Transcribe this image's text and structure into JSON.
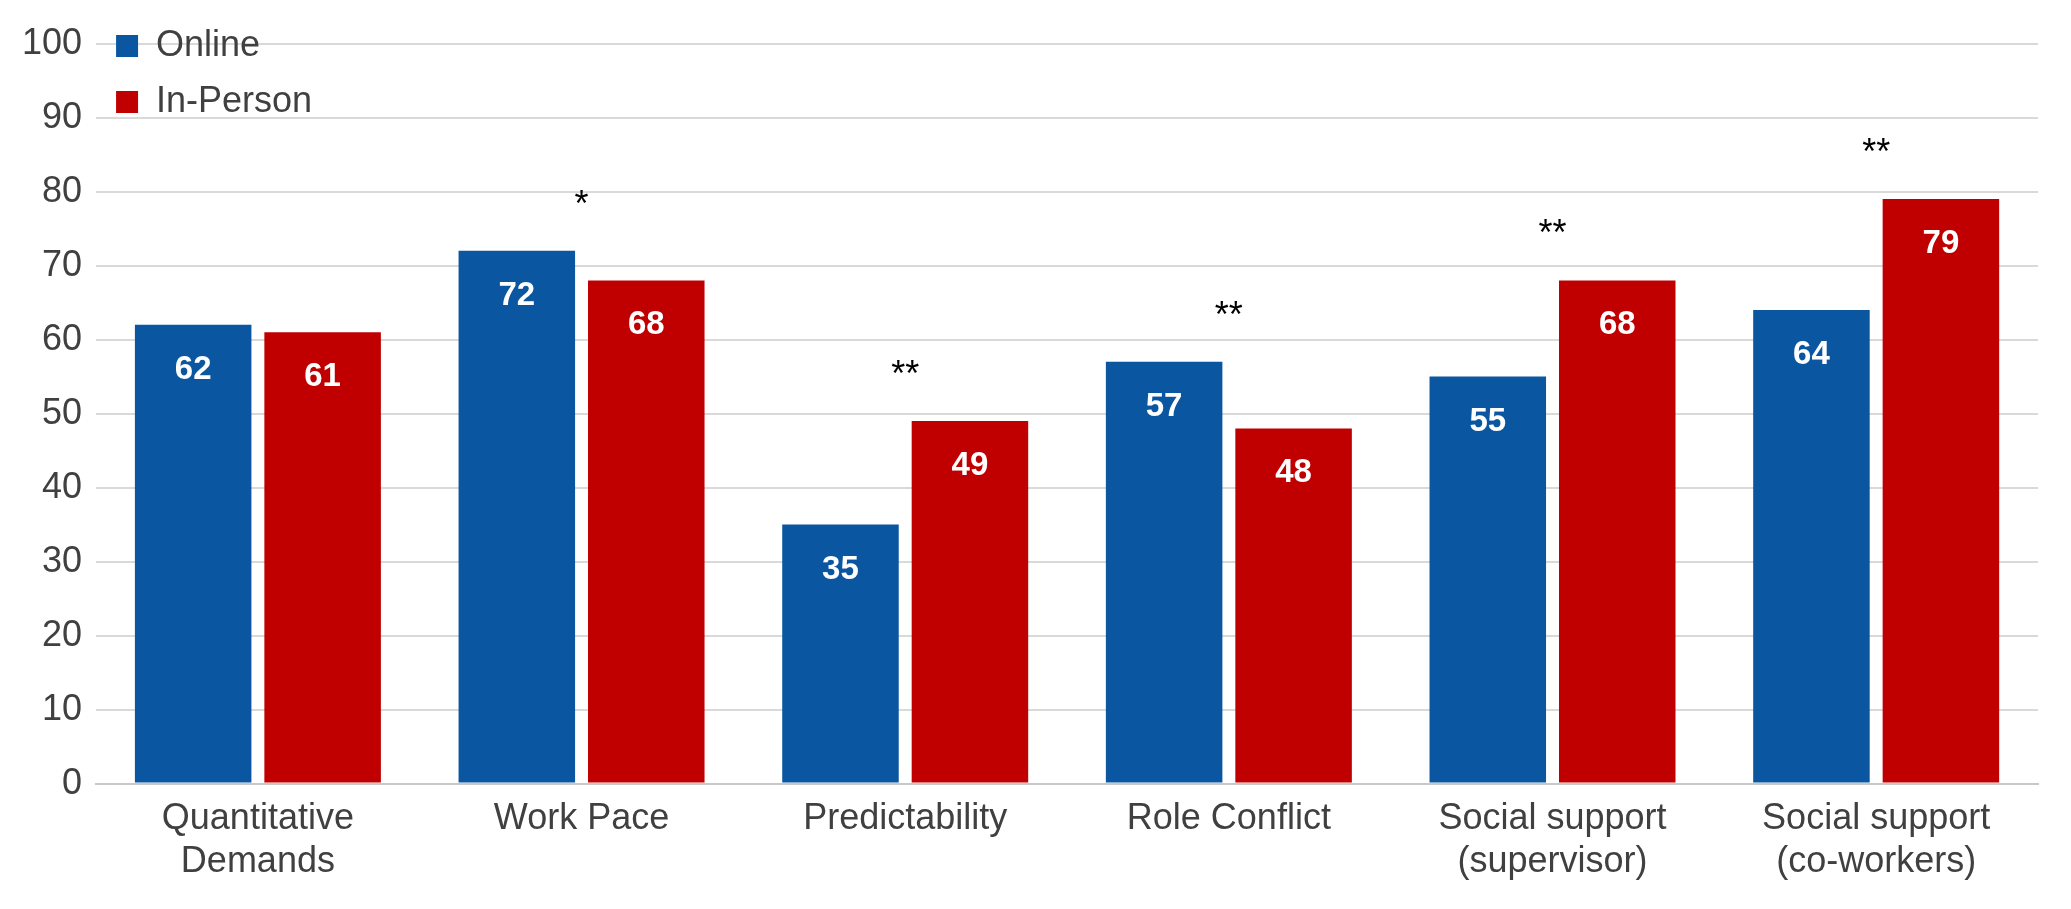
{
  "chart_data": {
    "type": "bar",
    "categories": [
      "Quantitative Demands",
      "Work Pace",
      "Predictability",
      "Role Conflict",
      "Social support (supervisor)",
      "Social support (co-workers)"
    ],
    "series": [
      {
        "name": "Online",
        "color": "#0a56a0",
        "values": [
          62,
          72,
          35,
          57,
          55,
          64
        ]
      },
      {
        "name": "In-Person",
        "color": "#c00000",
        "values": [
          61,
          68,
          49,
          48,
          68,
          79
        ]
      }
    ],
    "ylim": [
      0,
      100
    ],
    "yticks": [
      0,
      10,
      20,
      30,
      40,
      50,
      60,
      70,
      80,
      90,
      100
    ],
    "grid": "y",
    "legend": "top left",
    "data_labels": true,
    "annotations": [
      "*",
      "**",
      "**",
      "**",
      "**"
    ]
  }
}
